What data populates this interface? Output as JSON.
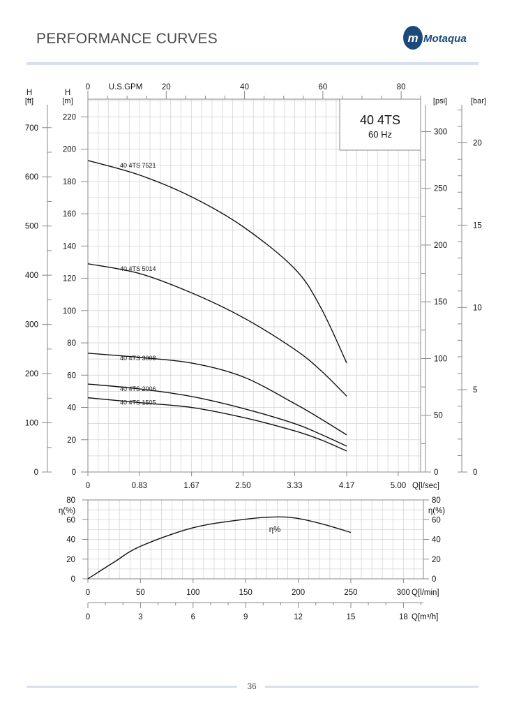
{
  "page": {
    "title": "PERFORMANCE CURVES",
    "logo_text": "Motaqua",
    "page_number": "36",
    "brand_color": "#1b4a7a",
    "rule_color": "#d7e0ec"
  },
  "chart_data": [
    {
      "type": "line",
      "model_box": {
        "title": "40 4TS",
        "subtitle": "60 Hz"
      },
      "x": {
        "label": "Q[l/sec]",
        "ticks": [
          "0",
          "0.83",
          "1.67",
          "2.50",
          "3.33",
          "4.17",
          "5.00"
        ],
        "range": [
          0,
          5.36
        ]
      },
      "x_top": {
        "label": "U.S.GPM",
        "ticks": [
          0,
          20,
          40,
          60,
          80
        ]
      },
      "y": {
        "label": "H",
        "unit": "[m]",
        "ticks": [
          0,
          20,
          40,
          60,
          80,
          100,
          120,
          140,
          160,
          180,
          200,
          220
        ],
        "range": [
          0,
          231
        ]
      },
      "y_ft": {
        "label": "H",
        "unit": "[ft]",
        "ticks": [
          0,
          100,
          200,
          300,
          400,
          500,
          600,
          700
        ]
      },
      "y_psi": {
        "unit": "[psi]",
        "ticks": [
          0,
          50,
          100,
          150,
          200,
          250,
          300
        ]
      },
      "y_bar": {
        "unit": "[bar]",
        "ticks": [
          0,
          5,
          10,
          15,
          20
        ]
      },
      "grid": true,
      "series": [
        {
          "name": "40 4TS 7521",
          "x": [
            0,
            0.83,
            1.67,
            2.5,
            3.33,
            3.75,
            4.17
          ],
          "y": [
            193,
            184,
            170.5,
            152,
            126,
            102,
            67.5
          ]
        },
        {
          "name": "40 4TS 5014",
          "x": [
            0,
            0.83,
            1.67,
            2.5,
            3.33,
            3.75,
            4.17
          ],
          "y": [
            129,
            123,
            111,
            95.7,
            76,
            63,
            47
          ]
        },
        {
          "name": "40 4TS 3008",
          "x": [
            0,
            0.83,
            1.67,
            2.5,
            3.33,
            3.75,
            4.17
          ],
          "y": [
            73.6,
            71,
            67.5,
            59,
            42.4,
            33,
            23
          ]
        },
        {
          "name": "40 4TS 2006",
          "x": [
            0,
            0.83,
            1.67,
            2.5,
            3.33,
            3.75,
            4.17
          ],
          "y": [
            54.5,
            51.5,
            46.8,
            39.4,
            30,
            23.4,
            16
          ]
        },
        {
          "name": "40 4TS 1505",
          "x": [
            0,
            0.83,
            1.67,
            2.5,
            3.33,
            3.75,
            4.17
          ],
          "y": [
            46,
            43,
            40,
            33.8,
            25.5,
            20,
            13
          ]
        }
      ]
    },
    {
      "type": "line",
      "x": {
        "label": "Q[l/min]",
        "ticks": [
          0,
          50,
          100,
          150,
          200,
          250,
          300
        ],
        "range": [
          0,
          319
        ]
      },
      "x2": {
        "label": "Q[m³/h]",
        "ticks": [
          0,
          3,
          6,
          9,
          12,
          15,
          18
        ]
      },
      "y": {
        "label": "η(%)",
        "ticks": [
          0,
          20,
          40,
          60,
          80
        ],
        "range": [
          0,
          80
        ]
      },
      "grid": true,
      "series": [
        {
          "name": "η%",
          "x": [
            0,
            25,
            50,
            100,
            150,
            180,
            200,
            225,
            250
          ],
          "y": [
            0,
            17,
            33,
            51.8,
            60.5,
            62.8,
            61.2,
            55,
            47
          ]
        }
      ]
    }
  ]
}
